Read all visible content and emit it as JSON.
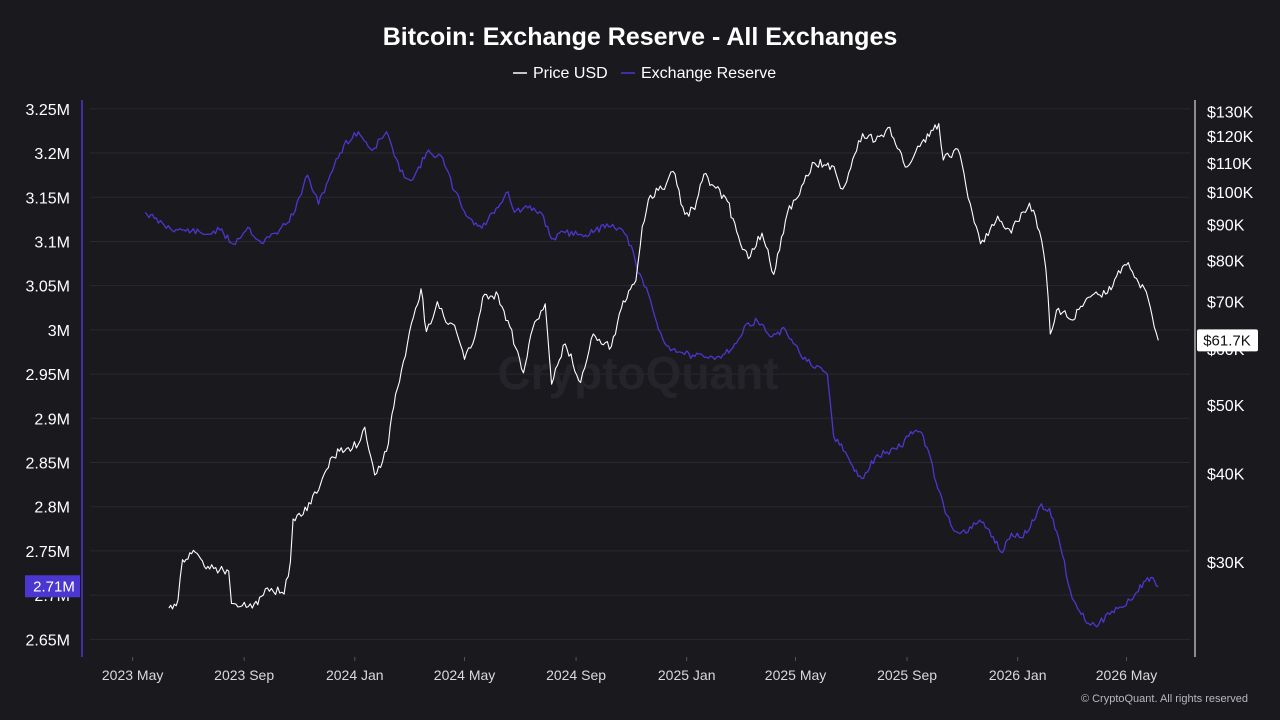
{
  "chart_data": {
    "type": "line",
    "title": "Bitcoin: Exchange Reserve - All Exchanges",
    "legend": {
      "placement": "top-center",
      "items": [
        {
          "name": "Price USD",
          "color": "#ffffff"
        },
        {
          "name": "Exchange Reserve",
          "color": "#4b37cf"
        }
      ]
    },
    "x_axis": {
      "type": "date",
      "range": [
        "2023-03-15",
        "2026-07-10"
      ],
      "ticks": [
        {
          "date": "2023-05-01",
          "label": "2023 May"
        },
        {
          "date": "2023-09-01",
          "label": "2023 Sep"
        },
        {
          "date": "2024-01-01",
          "label": "2024 Jan"
        },
        {
          "date": "2024-05-01",
          "label": "2024 May"
        },
        {
          "date": "2024-09-01",
          "label": "2024 Sep"
        },
        {
          "date": "2025-01-01",
          "label": "2025 Jan"
        },
        {
          "date": "2025-05-01",
          "label": "2025 May"
        },
        {
          "date": "2025-09-01",
          "label": "2025 Sep"
        },
        {
          "date": "2026-01-01",
          "label": "2026 Jan"
        },
        {
          "date": "2026-05-01",
          "label": "2026 May"
        }
      ]
    },
    "y_left": {
      "range": [
        2.63,
        3.26
      ],
      "unit": "M",
      "grid": true,
      "ticks": [
        {
          "value": 2.65,
          "label": "2.65M"
        },
        {
          "value": 2.7,
          "label": "2.7M"
        },
        {
          "value": 2.75,
          "label": "2.75M"
        },
        {
          "value": 2.8,
          "label": "2.8M"
        },
        {
          "value": 2.85,
          "label": "2.85M"
        },
        {
          "value": 2.9,
          "label": "2.9M"
        },
        {
          "value": 2.95,
          "label": "2.95M"
        },
        {
          "value": 3.0,
          "label": "3M"
        },
        {
          "value": 3.05,
          "label": "3.05M"
        },
        {
          "value": 3.1,
          "label": "3.1M"
        },
        {
          "value": 3.15,
          "label": "3.15M"
        },
        {
          "value": 3.2,
          "label": "3.2M"
        },
        {
          "value": 3.25,
          "label": "3.25M"
        }
      ]
    },
    "y_right": {
      "scale": "log",
      "range": [
        22000,
        135000
      ],
      "ticks": [
        {
          "value": 30000,
          "label": "$30K"
        },
        {
          "value": 40000,
          "label": "$40K"
        },
        {
          "value": 50000,
          "label": "$50K"
        },
        {
          "value": 60000,
          "label": "$60K"
        },
        {
          "value": 70000,
          "label": "$70K"
        },
        {
          "value": 80000,
          "label": "$80K"
        },
        {
          "value": 90000,
          "label": "$90K"
        },
        {
          "value": 100000,
          "label": "$100K"
        },
        {
          "value": 110000,
          "label": "$110K"
        },
        {
          "value": 120000,
          "label": "$120K"
        },
        {
          "value": 130000,
          "label": "$130K"
        }
      ]
    },
    "current_labels": {
      "reserve": {
        "text": "2.71M",
        "value": 2.71
      },
      "price": {
        "text": "$61.7K",
        "value": 61700
      }
    },
    "series": [
      {
        "name": "Price USD",
        "color": "#ffffff",
        "axis": "right",
        "points": [
          [
            "2023-06-10",
            25800
          ],
          [
            "2023-06-20",
            26500
          ],
          [
            "2023-06-25",
            30200
          ],
          [
            "2023-07-05",
            30800
          ],
          [
            "2023-07-15",
            30300
          ],
          [
            "2023-07-25",
            29300
          ],
          [
            "2023-08-05",
            29200
          ],
          [
            "2023-08-15",
            29100
          ],
          [
            "2023-08-18",
            26200
          ],
          [
            "2023-08-30",
            26000
          ],
          [
            "2023-09-10",
            25800
          ],
          [
            "2023-09-20",
            26800
          ],
          [
            "2023-10-01",
            27500
          ],
          [
            "2023-10-15",
            27000
          ],
          [
            "2023-10-22",
            30000
          ],
          [
            "2023-10-25",
            34500
          ],
          [
            "2023-11-05",
            35000
          ],
          [
            "2023-11-20",
            37500
          ],
          [
            "2023-12-05",
            42000
          ],
          [
            "2023-12-15",
            43000
          ],
          [
            "2023-12-25",
            43500
          ],
          [
            "2024-01-05",
            44000
          ],
          [
            "2024-01-12",
            46500
          ],
          [
            "2024-01-23",
            39800
          ],
          [
            "2024-02-05",
            43000
          ],
          [
            "2024-02-15",
            51800
          ],
          [
            "2024-02-28",
            61000
          ],
          [
            "2024-03-08",
            68500
          ],
          [
            "2024-03-14",
            73000
          ],
          [
            "2024-03-20",
            63500
          ],
          [
            "2024-04-01",
            70000
          ],
          [
            "2024-04-13",
            65000
          ],
          [
            "2024-04-20",
            64800
          ],
          [
            "2024-05-01",
            58000
          ],
          [
            "2024-05-10",
            61000
          ],
          [
            "2024-05-21",
            71000
          ],
          [
            "2024-06-07",
            71500
          ],
          [
            "2024-06-20",
            64500
          ],
          [
            "2024-07-05",
            55500
          ],
          [
            "2024-07-15",
            64000
          ],
          [
            "2024-07-29",
            69500
          ],
          [
            "2024-08-05",
            53500
          ],
          [
            "2024-08-20",
            61000
          ],
          [
            "2024-09-06",
            53800
          ],
          [
            "2024-09-20",
            63000
          ],
          [
            "2024-10-10",
            60500
          ],
          [
            "2024-10-21",
            68500
          ],
          [
            "2024-10-29",
            72500
          ],
          [
            "2024-11-06",
            75000
          ],
          [
            "2024-11-13",
            89500
          ],
          [
            "2024-11-22",
            99000
          ],
          [
            "2024-12-05",
            101000
          ],
          [
            "2024-12-17",
            107000
          ],
          [
            "2024-12-30",
            93000
          ],
          [
            "2025-01-10",
            94500
          ],
          [
            "2025-01-20",
            106000
          ],
          [
            "2025-01-31",
            102000
          ],
          [
            "2025-02-15",
            97000
          ],
          [
            "2025-02-25",
            88000
          ],
          [
            "2025-03-10",
            80500
          ],
          [
            "2025-03-25",
            87500
          ],
          [
            "2025-04-07",
            76500
          ],
          [
            "2025-04-22",
            93500
          ],
          [
            "2025-05-10",
            103000
          ],
          [
            "2025-05-22",
            110000
          ],
          [
            "2025-06-10",
            109000
          ],
          [
            "2025-06-22",
            101000
          ],
          [
            "2025-07-14",
            121000
          ],
          [
            "2025-07-28",
            118000
          ],
          [
            "2025-08-13",
            123500
          ],
          [
            "2025-08-30",
            108500
          ],
          [
            "2025-09-15",
            116000
          ],
          [
            "2025-10-06",
            125000
          ],
          [
            "2025-10-11",
            111000
          ],
          [
            "2025-10-27",
            115000
          ],
          [
            "2025-11-05",
            102000
          ],
          [
            "2025-11-21",
            84500
          ],
          [
            "2025-12-10",
            92500
          ],
          [
            "2025-12-25",
            87500
          ],
          [
            "2026-01-05",
            93500
          ],
          [
            "2026-01-14",
            96500
          ],
          [
            "2026-01-25",
            88000
          ],
          [
            "2026-02-01",
            78000
          ],
          [
            "2026-02-06",
            63000
          ],
          [
            "2026-02-15",
            68500
          ],
          [
            "2026-03-01",
            66000
          ],
          [
            "2026-03-20",
            71000
          ],
          [
            "2026-04-10",
            72000
          ],
          [
            "2026-04-20",
            76000
          ],
          [
            "2026-05-03",
            79500
          ],
          [
            "2026-05-12",
            75500
          ],
          [
            "2026-05-25",
            70500
          ],
          [
            "2026-06-05",
            61700
          ]
        ]
      },
      {
        "name": "Exchange Reserve",
        "color": "#4b37cf",
        "axis": "left",
        "unit": "M",
        "points": [
          [
            "2023-05-15",
            3.133
          ],
          [
            "2023-05-25",
            3.126
          ],
          [
            "2023-06-05",
            3.118
          ],
          [
            "2023-06-20",
            3.113
          ],
          [
            "2023-07-05",
            3.112
          ],
          [
            "2023-07-20",
            3.108
          ],
          [
            "2023-08-05",
            3.113
          ],
          [
            "2023-08-20",
            3.097
          ],
          [
            "2023-09-05",
            3.116
          ],
          [
            "2023-09-20",
            3.098
          ],
          [
            "2023-10-10",
            3.113
          ],
          [
            "2023-10-25",
            3.13
          ],
          [
            "2023-11-10",
            3.175
          ],
          [
            "2023-11-22",
            3.142
          ],
          [
            "2023-12-05",
            3.176
          ],
          [
            "2023-12-20",
            3.209
          ],
          [
            "2024-01-05",
            3.224
          ],
          [
            "2024-01-20",
            3.203
          ],
          [
            "2024-02-05",
            3.224
          ],
          [
            "2024-02-20",
            3.179
          ],
          [
            "2024-03-05",
            3.17
          ],
          [
            "2024-03-20",
            3.2
          ],
          [
            "2024-04-05",
            3.197
          ],
          [
            "2024-04-20",
            3.157
          ],
          [
            "2024-05-05",
            3.127
          ],
          [
            "2024-05-20",
            3.115
          ],
          [
            "2024-06-05",
            3.138
          ],
          [
            "2024-06-18",
            3.156
          ],
          [
            "2024-06-25",
            3.133
          ],
          [
            "2024-07-10",
            3.138
          ],
          [
            "2024-07-25",
            3.132
          ],
          [
            "2024-08-05",
            3.103
          ],
          [
            "2024-08-20",
            3.11
          ],
          [
            "2024-09-05",
            3.108
          ],
          [
            "2024-09-20",
            3.11
          ],
          [
            "2024-10-05",
            3.12
          ],
          [
            "2024-10-20",
            3.115
          ],
          [
            "2024-11-01",
            3.095
          ],
          [
            "2024-11-08",
            3.065
          ],
          [
            "2024-11-20",
            3.04
          ],
          [
            "2024-12-01",
            3.0
          ],
          [
            "2024-12-10",
            2.982
          ],
          [
            "2024-12-25",
            2.975
          ],
          [
            "2025-01-10",
            2.97
          ],
          [
            "2025-01-25",
            2.968
          ],
          [
            "2025-02-10",
            2.972
          ],
          [
            "2025-02-25",
            2.985
          ],
          [
            "2025-03-10",
            3.008
          ],
          [
            "2025-03-20",
            3.01
          ],
          [
            "2025-04-05",
            2.992
          ],
          [
            "2025-04-20",
            3.0
          ],
          [
            "2025-05-05",
            2.975
          ],
          [
            "2025-05-20",
            2.958
          ],
          [
            "2025-06-05",
            2.95
          ],
          [
            "2025-06-12",
            2.88
          ],
          [
            "2025-06-25",
            2.862
          ],
          [
            "2025-07-05",
            2.84
          ],
          [
            "2025-07-15",
            2.832
          ],
          [
            "2025-07-28",
            2.856
          ],
          [
            "2025-08-10",
            2.862
          ],
          [
            "2025-08-25",
            2.868
          ],
          [
            "2025-09-05",
            2.885
          ],
          [
            "2025-09-15",
            2.885
          ],
          [
            "2025-09-25",
            2.862
          ],
          [
            "2025-10-05",
            2.82
          ],
          [
            "2025-10-15",
            2.79
          ],
          [
            "2025-10-25",
            2.772
          ],
          [
            "2025-11-05",
            2.77
          ],
          [
            "2025-11-20",
            2.785
          ],
          [
            "2025-12-05",
            2.766
          ],
          [
            "2025-12-15",
            2.748
          ],
          [
            "2025-12-25",
            2.77
          ],
          [
            "2026-01-05",
            2.765
          ],
          [
            "2026-01-15",
            2.777
          ],
          [
            "2026-01-25",
            2.8
          ],
          [
            "2026-02-05",
            2.798
          ],
          [
            "2026-02-15",
            2.765
          ],
          [
            "2026-02-28",
            2.705
          ],
          [
            "2026-03-10",
            2.682
          ],
          [
            "2026-03-20",
            2.668
          ],
          [
            "2026-04-01",
            2.668
          ],
          [
            "2026-04-15",
            2.682
          ],
          [
            "2026-04-28",
            2.687
          ],
          [
            "2026-05-10",
            2.7
          ],
          [
            "2026-05-20",
            2.715
          ],
          [
            "2026-05-28",
            2.72
          ],
          [
            "2026-06-05",
            2.71
          ]
        ]
      }
    ]
  },
  "watermark": "CryptoQuant",
  "copyright": "© CryptoQuant. All rights reserved"
}
